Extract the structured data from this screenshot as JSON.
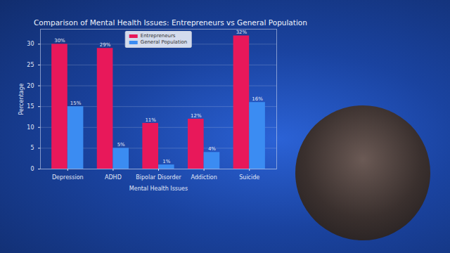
{
  "chart_data": {
    "type": "bar",
    "title": "Comparison of Mental Health Issues: Entrepreneurs vs General Population",
    "categories": [
      "Depression",
      "ADHD",
      "Bipolar Disorder",
      "Addiction",
      "Suicide"
    ],
    "series": [
      {
        "name": "Entrepreneurs",
        "color": "#e8185a",
        "values": [
          30,
          29,
          11,
          12,
          32
        ],
        "value_labels": [
          "30%",
          "29%",
          "11%",
          "12%",
          "32%"
        ]
      },
      {
        "name": "General Population",
        "color": "#3b8cf2",
        "values": [
          15,
          5,
          1,
          4,
          16
        ],
        "value_labels": [
          "15%",
          "5%",
          "1%",
          "4%",
          "16%"
        ]
      }
    ],
    "x_label": "Mental Health Issues",
    "y_label": "Percentage",
    "ylim": [
      0,
      33.6
    ],
    "yticks": [
      0,
      5,
      10,
      15,
      20,
      25,
      30
    ],
    "grid": true,
    "legend": "upper center",
    "data_labels": true
  }
}
